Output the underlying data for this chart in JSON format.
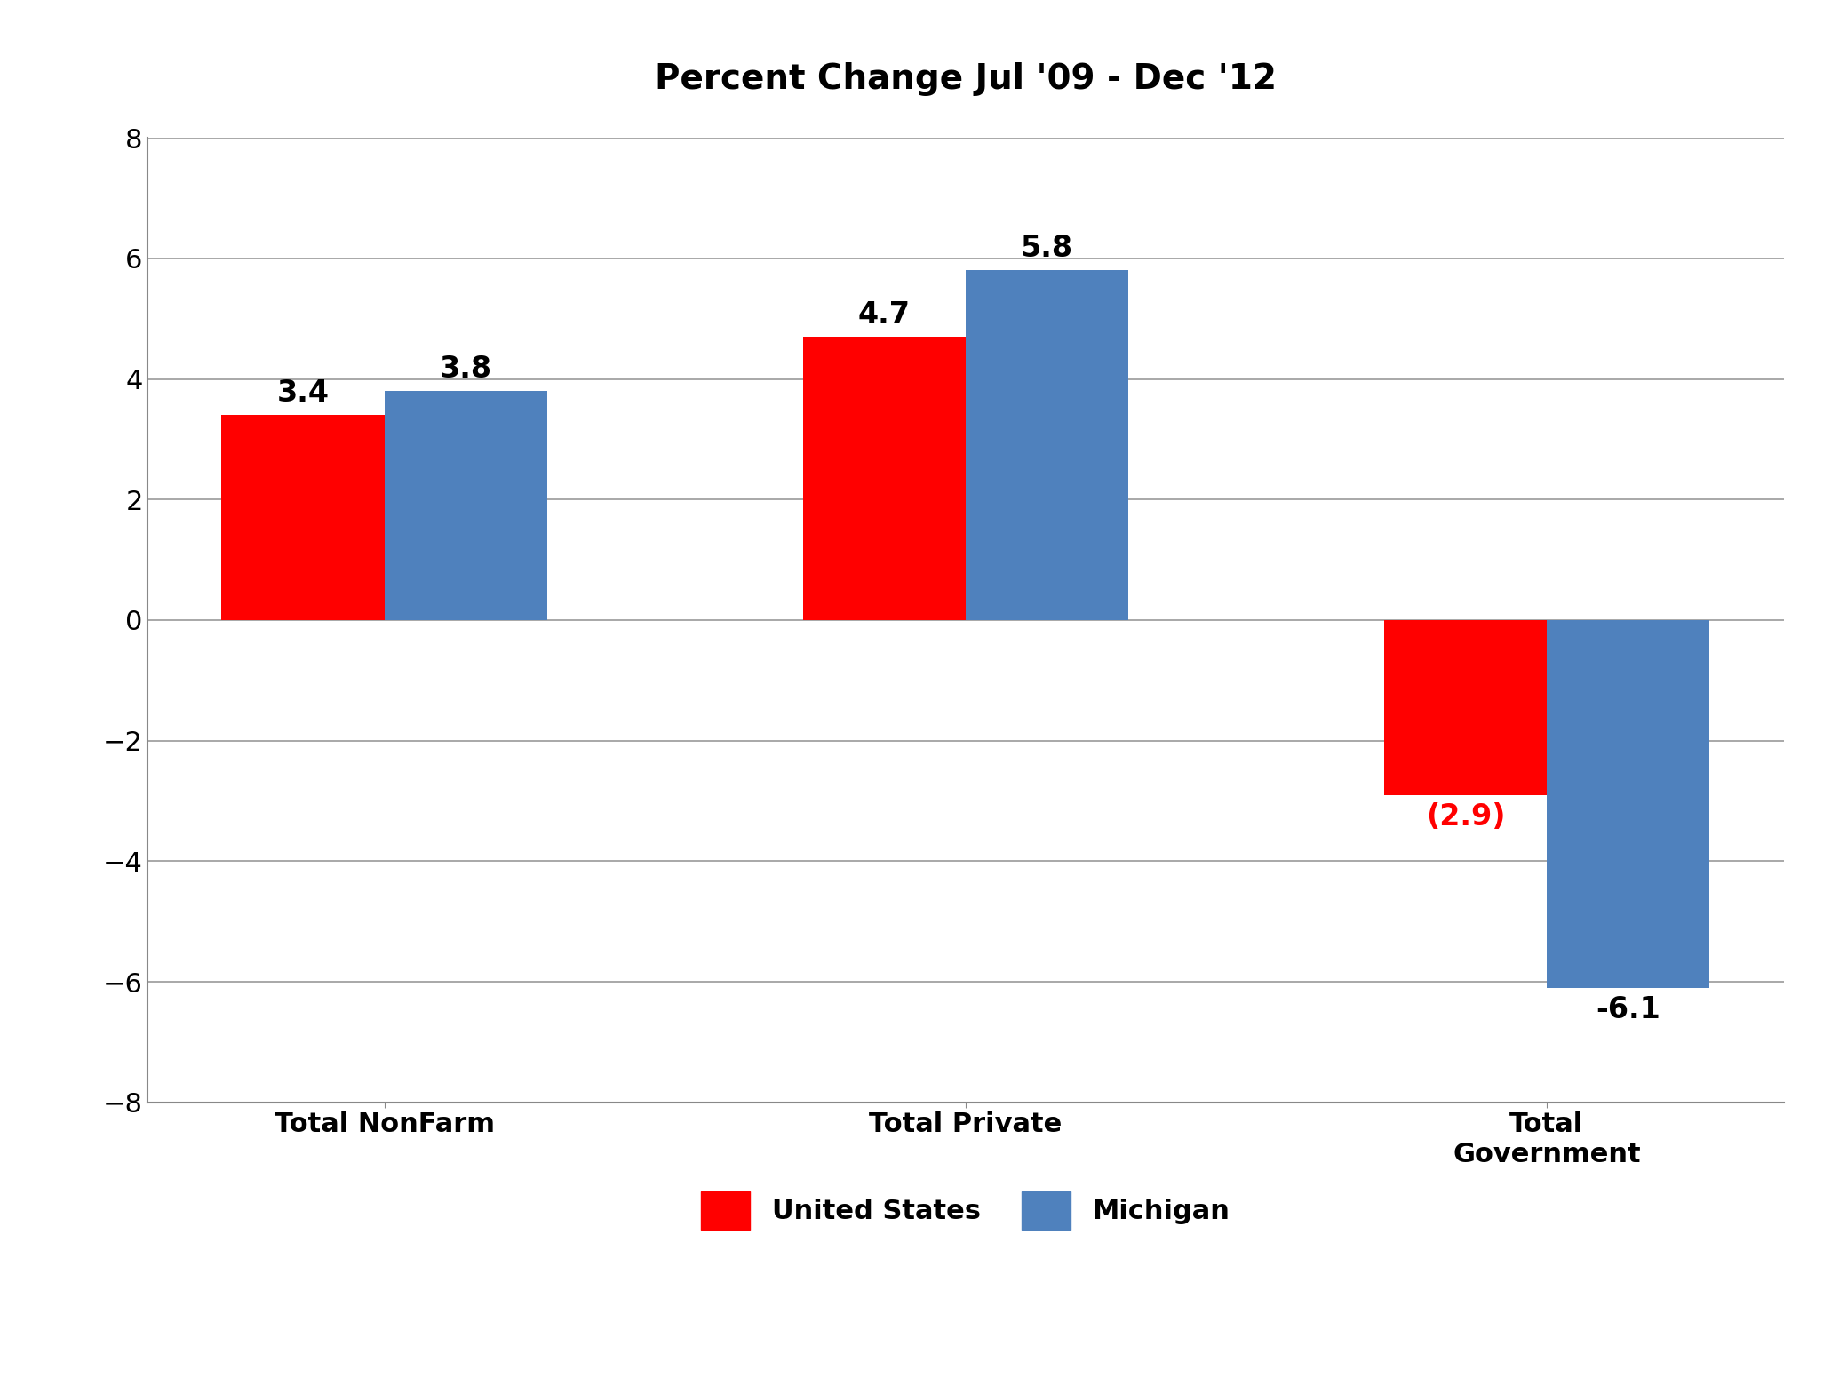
{
  "title": "Percent Change Jul '09 - Dec '12",
  "categories": [
    "Total NonFarm",
    "Total Private",
    "Total\nGovernment"
  ],
  "us_values": [
    3.4,
    4.7,
    -2.9
  ],
  "mi_values": [
    3.8,
    5.8,
    -6.1
  ],
  "us_labels": [
    "3.4",
    "4.7",
    "(2.9)"
  ],
  "mi_labels": [
    "3.8",
    "5.8",
    "-6.1"
  ],
  "us_color": "#FF0000",
  "mi_color": "#4F81BD",
  "ylim": [
    -8,
    8
  ],
  "yticks": [
    -8,
    -6,
    -4,
    -2,
    0,
    2,
    4,
    6,
    8
  ],
  "bar_width": 0.28,
  "title_fontsize": 28,
  "tick_fontsize": 22,
  "legend_fontsize": 22,
  "annotation_fontsize": 24,
  "us_label_color_normal": "#000000",
  "us_label_color_neg": "#FF0000",
  "mi_label_color": "#000000",
  "background_color": "#FFFFFF",
  "grid_color": "#999999",
  "spine_color": "#888888"
}
